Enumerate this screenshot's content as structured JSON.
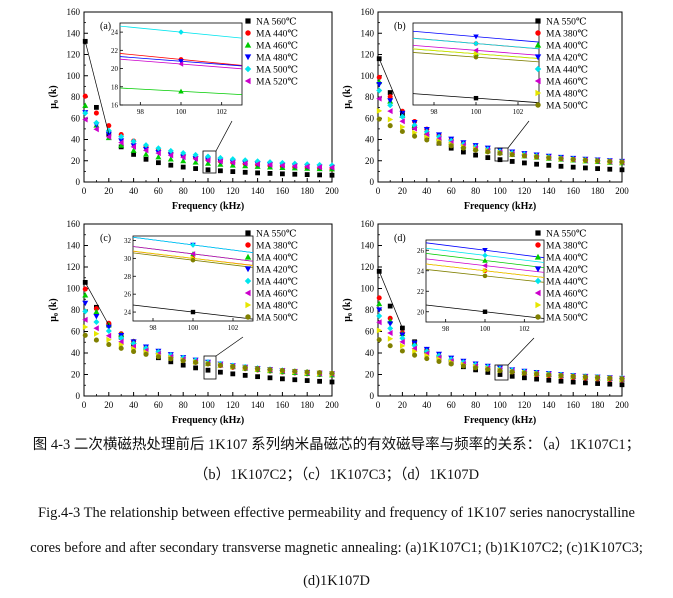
{
  "caption": {
    "zh_line1": "图 4-3  二次横磁热处理前后 1K107 系列纳米晶磁芯的有效磁导率与频率的关系：（a）1K107C1；",
    "zh_line2": "（b）1K107C2；（c）1K107C3；（d）1K107D",
    "en_line1": "Fig.4-3 The relationship between effective permeability and frequency of 1K107 series nanocrystalline",
    "en_line2": "cores before and after secondary transverse magnetic annealing: (a)1K107C1; (b)1K107C2; (c)1K107C3;",
    "en_line3": "(d)1K107D"
  },
  "chart_data": [
    {
      "type": "scatter",
      "panel_label": "(a)",
      "xlabel": "Frequency (kHz)",
      "ylabel": "μ₀ (k)",
      "xlim": [
        0,
        200
      ],
      "ylim": [
        0,
        160
      ],
      "xticks": [
        0,
        20,
        40,
        60,
        80,
        100,
        120,
        140,
        160,
        180,
        200
      ],
      "yticks": [
        0,
        20,
        40,
        60,
        80,
        100,
        120,
        140,
        160
      ],
      "legend_position": "top-right",
      "x": [
        1,
        10,
        20,
        30,
        40,
        50,
        60,
        70,
        80,
        90,
        100,
        110,
        120,
        130,
        140,
        150,
        160,
        170,
        180,
        190,
        200
      ],
      "series": [
        {
          "name": "NA 560℃",
          "color": "#000000",
          "marker": "square",
          "y0": 146,
          "y100": 11.5,
          "y200": 6.5
        },
        {
          "name": "MA 440℃",
          "color": "#ff0000",
          "marker": "circle",
          "y0": 83,
          "y100": 21.0,
          "y200": 11.0
        },
        {
          "name": "MA 460℃",
          "color": "#00cc00",
          "marker": "triangle-up",
          "y0": 75,
          "y100": 17.5,
          "y200": 12.0
        },
        {
          "name": "MA 480℃",
          "color": "#0000ff",
          "marker": "triangle-down",
          "y0": 67,
          "y100": 20.8,
          "y200": 13.0
        },
        {
          "name": "MA 500℃",
          "color": "#00e5ee",
          "marker": "diamond",
          "y0": 66,
          "y100": 24.0,
          "y200": 14.0
        },
        {
          "name": "MA 520℃",
          "color": "#cc00cc",
          "marker": "triangle-left",
          "y0": 60,
          "y100": 20.5,
          "y200": 12.5
        }
      ],
      "inset": {
        "xlim": [
          97,
          103
        ],
        "ylim": [
          16,
          25
        ],
        "xticks": [
          98,
          100,
          102
        ],
        "yticks": [
          16,
          18,
          20,
          22,
          24
        ]
      }
    },
    {
      "type": "scatter",
      "panel_label": "(b)",
      "xlabel": "Frequency (kHz)",
      "ylabel": "μ₀ (k)",
      "xlim": [
        0,
        200
      ],
      "ylim": [
        0,
        160
      ],
      "xticks": [
        0,
        20,
        40,
        60,
        80,
        100,
        120,
        140,
        160,
        180,
        200
      ],
      "yticks": [
        0,
        20,
        40,
        60,
        80,
        100,
        120,
        140,
        160
      ],
      "legend_position": "top-right",
      "x": [
        1,
        10,
        20,
        30,
        40,
        50,
        60,
        70,
        80,
        90,
        100,
        110,
        120,
        130,
        140,
        150,
        160,
        170,
        180,
        190,
        200
      ],
      "series": [
        {
          "name": "NA 550℃",
          "color": "#000000",
          "marker": "square",
          "y0": 121,
          "y100": 21.0,
          "y200": 11.0
        },
        {
          "name": "MA 380℃",
          "color": "#ff0000",
          "marker": "circle",
          "y0": 101,
          "y100": 29.0,
          "y200": 17.0
        },
        {
          "name": "MA 400℃",
          "color": "#00cc00",
          "marker": "triangle-up",
          "y0": 97,
          "y100": 27.5,
          "y200": 17.0
        },
        {
          "name": "MA 420℃",
          "color": "#0000ff",
          "marker": "triangle-down",
          "y0": 94,
          "y100": 30.0,
          "y200": 18.0
        },
        {
          "name": "MA 440℃",
          "color": "#00e5ee",
          "marker": "diamond",
          "y0": 88,
          "y100": 29.0,
          "y200": 17.5
        },
        {
          "name": "MA 460℃",
          "color": "#cc00cc",
          "marker": "triangle-left",
          "y0": 80,
          "y100": 28.0,
          "y200": 17.0
        },
        {
          "name": "MA 480℃",
          "color": "#e6e600",
          "marker": "triangle-right",
          "y0": 68,
          "y100": 27.5,
          "y200": 16.5
        },
        {
          "name": "MA 500℃",
          "color": "#808000",
          "marker": "circle",
          "y0": 60,
          "y100": 27.0,
          "y200": 16.5
        }
      ],
      "inset": {
        "xlim": [
          97,
          103
        ],
        "ylim": [
          20,
          32
        ],
        "xticks": [
          98,
          100,
          102
        ],
        "yticks": []
      }
    },
    {
      "type": "scatter",
      "panel_label": "(c)",
      "xlabel": "Frequency (kHz)",
      "ylabel": "μ₀ (k)",
      "xlim": [
        0,
        200
      ],
      "ylim": [
        0,
        160
      ],
      "xticks": [
        0,
        20,
        40,
        60,
        80,
        100,
        120,
        140,
        160,
        180,
        200
      ],
      "yticks": [
        0,
        20,
        40,
        60,
        80,
        100,
        120,
        140,
        160
      ],
      "legend_position": "top-right",
      "x": [
        1,
        10,
        20,
        30,
        40,
        50,
        60,
        70,
        80,
        90,
        100,
        110,
        120,
        130,
        140,
        150,
        160,
        170,
        180,
        190,
        200
      ],
      "series": [
        {
          "name": "NA 550℃",
          "color": "#000000",
          "marker": "square",
          "y0": 109,
          "y100": 24.0,
          "y200": 12.0
        },
        {
          "name": "MA 380℃",
          "color": "#ff0000",
          "marker": "circle",
          "y0": 102,
          "y100": 30.0,
          "y200": 18.0
        },
        {
          "name": "MA 400℃",
          "color": "#00cc00",
          "marker": "triangle-up",
          "y0": 96,
          "y100": 30.5,
          "y200": 18.0
        },
        {
          "name": "MA 420℃",
          "color": "#0000ff",
          "marker": "triangle-down",
          "y0": 88,
          "y100": 31.5,
          "y200": 18.5
        },
        {
          "name": "MA 440℃",
          "color": "#00e5ee",
          "marker": "diamond",
          "y0": 80,
          "y100": 31.5,
          "y200": 18.5
        },
        {
          "name": "MA 460℃",
          "color": "#cc00cc",
          "marker": "triangle-left",
          "y0": 72,
          "y100": 30.5,
          "y200": 18.0
        },
        {
          "name": "MA 480℃",
          "color": "#e6e600",
          "marker": "triangle-right",
          "y0": 65,
          "y100": 30.0,
          "y200": 17.5
        },
        {
          "name": "MA 500℃",
          "color": "#808000",
          "marker": "circle",
          "y0": 57,
          "y100": 29.8,
          "y200": 17.5
        }
      ],
      "inset": {
        "xlim": [
          97,
          103
        ],
        "ylim": [
          23,
          32.5
        ],
        "xticks": [
          98,
          100,
          102
        ],
        "yticks": [
          24,
          26,
          28,
          30,
          32
        ]
      }
    },
    {
      "type": "scatter",
      "panel_label": "(d)",
      "xlabel": "Frequency (kHz)",
      "ylabel": "μ₀ (k)",
      "xlim": [
        0,
        200
      ],
      "ylim": [
        0,
        160
      ],
      "xticks": [
        0,
        20,
        40,
        60,
        80,
        100,
        120,
        140,
        160,
        180,
        200
      ],
      "yticks": [
        0,
        20,
        40,
        60,
        80,
        100,
        120,
        140,
        160
      ],
      "legend_position": "top-right",
      "x": [
        1,
        10,
        20,
        30,
        40,
        50,
        60,
        70,
        80,
        90,
        100,
        110,
        120,
        130,
        140,
        150,
        160,
        170,
        180,
        190,
        200
      ],
      "series": [
        {
          "name": "NA 550℃",
          "color": "#000000",
          "marker": "square",
          "y0": 121,
          "y100": 20.0,
          "y200": 10.0
        },
        {
          "name": "MA 380℃",
          "color": "#ff0000",
          "marker": "circle",
          "y0": 94,
          "y100": 24.0,
          "y200": 14.0
        },
        {
          "name": "MA 400℃",
          "color": "#00cc00",
          "marker": "triangle-up",
          "y0": 88,
          "y100": 25.0,
          "y200": 14.5
        },
        {
          "name": "MA 420℃",
          "color": "#0000ff",
          "marker": "triangle-down",
          "y0": 82,
          "y100": 26.0,
          "y200": 15.0
        },
        {
          "name": "MA 440℃",
          "color": "#00e5ee",
          "marker": "diamond",
          "y0": 76,
          "y100": 25.5,
          "y200": 15.0
        },
        {
          "name": "MA 460℃",
          "color": "#cc00cc",
          "marker": "triangle-left",
          "y0": 70,
          "y100": 24.5,
          "y200": 14.5
        },
        {
          "name": "MA 480℃",
          "color": "#e6e600",
          "marker": "triangle-right",
          "y0": 62,
          "y100": 24.0,
          "y200": 14.0
        },
        {
          "name": "MA 500℃",
          "color": "#808000",
          "marker": "circle",
          "y0": 53,
          "y100": 23.5,
          "y200": 14.0
        }
      ],
      "inset": {
        "xlim": [
          97,
          103
        ],
        "ylim": [
          19,
          27
        ],
        "xticks": [
          98,
          100,
          102
        ],
        "yticks": [
          20,
          22,
          24,
          26
        ]
      }
    }
  ]
}
